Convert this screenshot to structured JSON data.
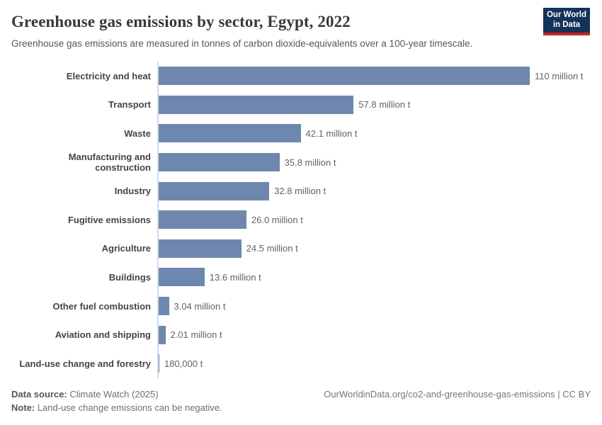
{
  "header": {
    "title": "Greenhouse gas emissions by sector, Egypt, 2022",
    "subtitle": "Greenhouse gas emissions are measured in tonnes of carbon dioxide-equivalents over a 100-year timescale.",
    "logo": {
      "line1": "Our World",
      "line2": "in Data",
      "bg_color": "#13335a",
      "accent_color": "#c5281c"
    }
  },
  "chart_data": {
    "type": "bar",
    "orientation": "horizontal",
    "title": "Greenhouse gas emissions by sector, Egypt, 2022",
    "unit": "tonnes of carbon dioxide-equivalents",
    "categories": [
      "Electricity and heat",
      "Transport",
      "Waste",
      "Manufacturing and construction",
      "Industry",
      "Fugitive emissions",
      "Agriculture",
      "Buildings",
      "Other fuel combustion",
      "Aviation and shipping",
      "Land-use change and forestry"
    ],
    "values_million_t": [
      110,
      57.8,
      42.1,
      35.8,
      32.8,
      26.0,
      24.5,
      13.6,
      3.04,
      2.01,
      0.18
    ],
    "value_labels": [
      "110 million t",
      "57.8 million t",
      "42.1 million t",
      "35.8 million t",
      "32.8 million t",
      "26.0 million t",
      "24.5 million t",
      "13.6 million t",
      "3.04 million t",
      "2.01 million t",
      "180,000 t"
    ],
    "xlim": [
      0,
      110
    ],
    "bar_color": "#6e87ae",
    "grid": false,
    "legend": "none"
  },
  "footer": {
    "data_source_label": "Data source:",
    "data_source_value": " Climate Watch (2025)",
    "note_label": "Note:",
    "note_value": " Land-use change emissions can be negative.",
    "url": "OurWorldinData.org/co2-and-greenhouse-gas-emissions | CC BY"
  }
}
